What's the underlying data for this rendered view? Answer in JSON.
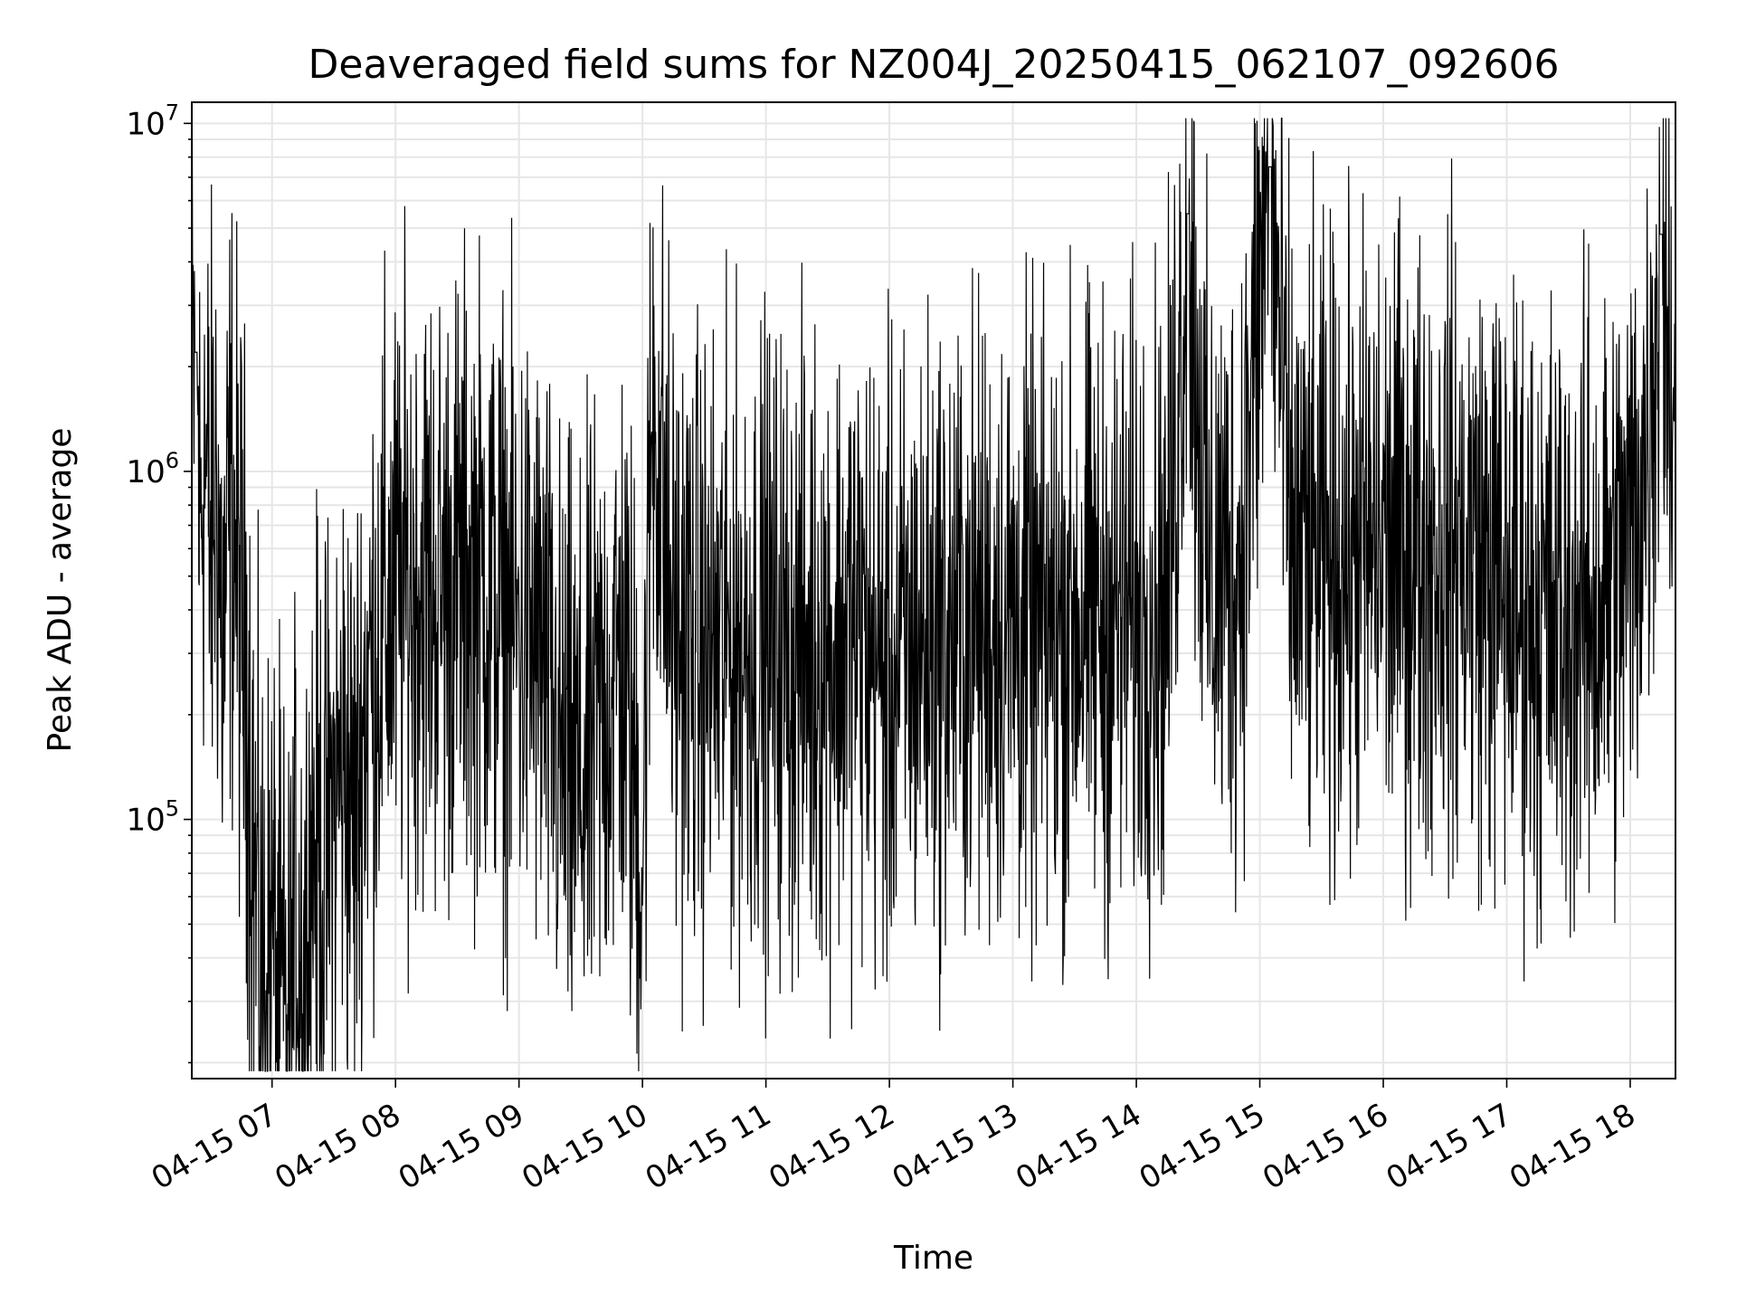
{
  "chart_data": {
    "type": "line",
    "title": "Deaveraged field sums for NZ004J_20250415_062107_092606",
    "xlabel": "Time",
    "ylabel": "Peak ADU - average",
    "yscale": "log",
    "ylim": [
      18000,
      11500000
    ],
    "xlim": [
      "2025-04-15 06:21",
      "2025-04-15 18:22"
    ],
    "grid": true,
    "line_color": "#000000",
    "x_tick_values": [
      "2025-04-15 07:00",
      "2025-04-15 08:00",
      "2025-04-15 09:00",
      "2025-04-15 10:00",
      "2025-04-15 11:00",
      "2025-04-15 12:00",
      "2025-04-15 13:00",
      "2025-04-15 14:00",
      "2025-04-15 15:00",
      "2025-04-15 16:00",
      "2025-04-15 17:00",
      "2025-04-15 18:00"
    ],
    "x_tick_labels": [
      "04-15 07",
      "04-15 08",
      "04-15 09",
      "04-15 10",
      "04-15 11",
      "04-15 12",
      "04-15 13",
      "04-15 14",
      "04-15 15",
      "04-15 16",
      "04-15 17",
      "04-15 18"
    ],
    "y_tick_values": [
      100000,
      1000000,
      10000000
    ],
    "y_tick_labels": [
      {
        "base": "10",
        "exp": "5"
      },
      {
        "base": "10",
        "exp": "6"
      },
      {
        "base": "10",
        "exp": "7"
      }
    ],
    "series": [
      {
        "points": [
          [
            "2025-04-15 06:21",
            1500000
          ],
          [
            "2025-04-15 06:23",
            2200000
          ],
          [
            "2025-04-15 06:25",
            700000
          ],
          [
            "2025-04-15 06:27",
            1200000
          ],
          [
            "2025-04-15 06:30",
            600000
          ],
          [
            "2025-04-15 06:33",
            1000000
          ],
          [
            "2025-04-15 06:36",
            300000
          ],
          [
            "2025-04-15 06:40",
            900000
          ],
          [
            "2025-04-15 06:44",
            450000
          ],
          [
            "2025-04-15 06:48",
            250000
          ],
          [
            "2025-04-15 06:52",
            60000
          ],
          [
            "2025-04-15 06:55",
            35000
          ],
          [
            "2025-04-15 07:00",
            45000
          ],
          [
            "2025-04-15 07:04",
            30000
          ],
          [
            "2025-04-15 07:08",
            20000
          ],
          [
            "2025-04-15 07:12",
            55000
          ],
          [
            "2025-04-15 07:16",
            40000
          ],
          [
            "2025-04-15 07:20",
            90000
          ],
          [
            "2025-04-15 07:25",
            70000
          ],
          [
            "2025-04-15 07:30",
            110000
          ],
          [
            "2025-04-15 07:35",
            150000
          ],
          [
            "2025-04-15 07:40",
            95000
          ],
          [
            "2025-04-15 07:45",
            220000
          ],
          [
            "2025-04-15 07:50",
            300000
          ],
          [
            "2025-04-15 07:55",
            380000
          ],
          [
            "2025-04-15 08:00",
            420000
          ],
          [
            "2025-04-15 08:10",
            500000
          ],
          [
            "2025-04-15 08:20",
            450000
          ],
          [
            "2025-04-15 08:30",
            480000
          ],
          [
            "2025-04-15 08:40",
            520000
          ],
          [
            "2025-04-15 08:50",
            400000
          ],
          [
            "2025-04-15 09:00",
            350000
          ],
          [
            "2025-04-15 09:10",
            300000
          ],
          [
            "2025-04-15 09:20",
            150000
          ],
          [
            "2025-04-15 09:30",
            120000
          ],
          [
            "2025-04-15 09:40",
            200000
          ],
          [
            "2025-04-15 09:50",
            300000
          ],
          [
            "2025-04-15 10:00",
            80000
          ],
          [
            "2025-04-15 10:05",
            1800000
          ],
          [
            "2025-04-15 10:15",
            350000
          ],
          [
            "2025-04-15 10:30",
            300000
          ],
          [
            "2025-04-15 10:45",
            320000
          ],
          [
            "2025-04-15 11:00",
            330000
          ],
          [
            "2025-04-15 11:15",
            300000
          ],
          [
            "2025-04-15 11:30",
            320000
          ],
          [
            "2025-04-15 11:45",
            350000
          ],
          [
            "2025-04-15 12:00",
            250000
          ],
          [
            "2025-04-15 12:15",
            330000
          ],
          [
            "2025-04-15 12:30",
            340000
          ],
          [
            "2025-04-15 12:45",
            380000
          ],
          [
            "2025-04-15 13:00",
            360000
          ],
          [
            "2025-04-15 13:15",
            330000
          ],
          [
            "2025-04-15 13:30",
            400000
          ],
          [
            "2025-04-15 13:45",
            370000
          ],
          [
            "2025-04-15 14:00",
            400000
          ],
          [
            "2025-04-15 14:15",
            450000
          ],
          [
            "2025-04-15 14:25",
            5500000
          ],
          [
            "2025-04-15 14:35",
            500000
          ],
          [
            "2025-04-15 14:50",
            550000
          ],
          [
            "2025-04-15 15:05",
            7500000
          ],
          [
            "2025-04-15 15:15",
            600000
          ],
          [
            "2025-04-15 15:30",
            550000
          ],
          [
            "2025-04-15 15:45",
            580000
          ],
          [
            "2025-04-15 16:00",
            620000
          ],
          [
            "2025-04-15 16:15",
            600000
          ],
          [
            "2025-04-15 16:30",
            620000
          ],
          [
            "2025-04-15 16:45",
            580000
          ],
          [
            "2025-04-15 17:00",
            450000
          ],
          [
            "2025-04-15 17:15",
            400000
          ],
          [
            "2025-04-15 17:30",
            380000
          ],
          [
            "2025-04-15 17:45",
            420000
          ],
          [
            "2025-04-15 18:00",
            600000
          ],
          [
            "2025-04-15 18:10",
            1500000
          ],
          [
            "2025-04-15 18:15",
            4800000
          ],
          [
            "2025-04-15 18:22",
            1300000
          ]
        ]
      }
    ]
  }
}
